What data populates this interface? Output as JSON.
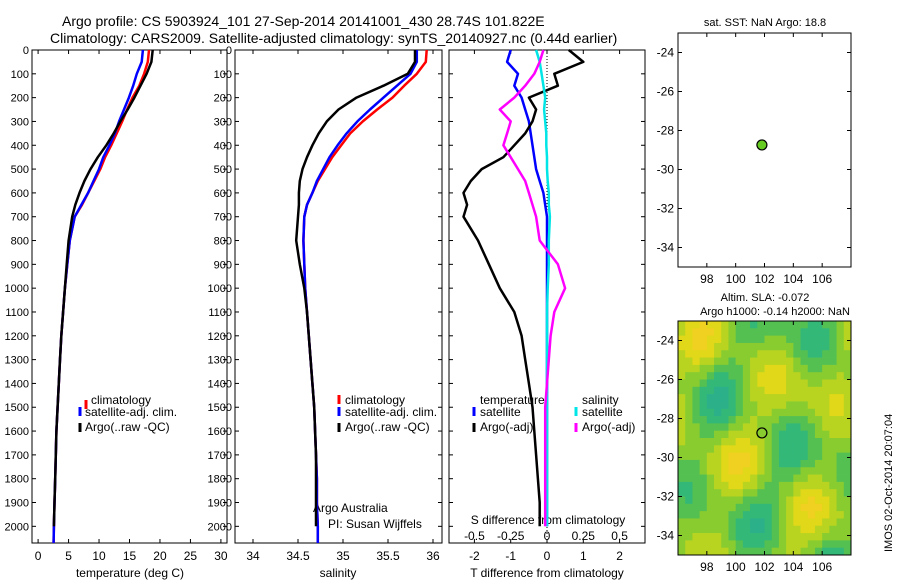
{
  "header": {
    "line1": "Argo profile: CS 5903924_101 27-Sep-2014 20141001_430 28.74S 101.822E",
    "line2": "Climatology: CARS2009. Satellite-adjusted climatology: synTS_20140927.nc (0.44d earlier)"
  },
  "colors": {
    "climatology": "#ff0000",
    "satellite": "#0000ff",
    "argo": "#000000",
    "sal_satellite": "#00e5e5",
    "sal_argo": "#ff00ff"
  },
  "side_texts": {
    "argo_australia": "Argo Australia",
    "pi": "PI: Susan Wijffels",
    "imos": "IMOS 02-Oct-2014 20:07:04"
  },
  "chart_data": [
    {
      "id": "temperature",
      "type": "line",
      "xlabel": "temperature (deg C)",
      "xlim": [
        -1,
        31
      ],
      "xticks": [
        0,
        5,
        10,
        15,
        20,
        25,
        30
      ],
      "ylim": [
        2070,
        0
      ],
      "yticks": [
        0,
        100,
        200,
        300,
        400,
        500,
        600,
        700,
        800,
        900,
        1000,
        1100,
        1200,
        1300,
        1400,
        1500,
        1600,
        1700,
        1800,
        1900,
        2000
      ],
      "legend": [
        "climatology",
        "satellite-adj. clim.",
        "Argo(..raw -QC)"
      ],
      "series": [
        {
          "name": "climatology",
          "color": "#ff0000",
          "x": [
            18.2,
            18.0,
            17.4,
            16.6,
            15.5,
            14.6,
            13.8,
            12.9,
            12.0,
            11.0,
            10.2,
            9.2,
            8.2,
            7.2,
            6.0,
            5.2,
            4.8,
            4.4,
            4.1,
            3.8,
            3.6,
            3.4,
            3.2,
            3.0,
            2.9,
            2.8,
            2.7,
            2.6,
            2.55
          ],
          "y": [
            0,
            50,
            100,
            150,
            200,
            250,
            300,
            350,
            400,
            450,
            500,
            550,
            600,
            650,
            700,
            800,
            900,
            1000,
            1100,
            1200,
            1300,
            1400,
            1500,
            1600,
            1700,
            1800,
            1900,
            2000,
            2070
          ]
        },
        {
          "name": "satellite-adj. clim.",
          "color": "#0000ff",
          "x": [
            17.2,
            17.0,
            16.2,
            15.6,
            14.9,
            14.1,
            13.3,
            12.6,
            11.7,
            10.7,
            10.0,
            9.1,
            8.2,
            7.1,
            6.0,
            5.2,
            4.8,
            4.4,
            4.1,
            3.8,
            3.6,
            3.4,
            3.2,
            3.0,
            2.9,
            2.8,
            2.7,
            2.6,
            2.55
          ],
          "y": [
            0,
            50,
            100,
            150,
            200,
            250,
            300,
            350,
            400,
            450,
            500,
            550,
            600,
            650,
            700,
            800,
            900,
            1000,
            1100,
            1200,
            1300,
            1400,
            1500,
            1600,
            1700,
            1800,
            1900,
            2000,
            2070
          ]
        },
        {
          "name": "Argo(..raw -QC)",
          "color": "#000000",
          "x": [
            18.8,
            18.6,
            17.8,
            16.8,
            15.8,
            14.7,
            13.5,
            12.4,
            11.2,
            9.8,
            8.6,
            7.6,
            6.8,
            6.1,
            5.6,
            5.0,
            4.7,
            4.4,
            4.1,
            3.8,
            3.6,
            3.4,
            3.2,
            3.0,
            2.9,
            2.8,
            2.7,
            2.6
          ],
          "y": [
            0,
            50,
            100,
            150,
            200,
            250,
            300,
            350,
            400,
            450,
            500,
            550,
            600,
            650,
            700,
            800,
            900,
            1000,
            1100,
            1200,
            1300,
            1400,
            1500,
            1600,
            1700,
            1800,
            1900,
            2000
          ]
        }
      ]
    },
    {
      "id": "salinity",
      "type": "line",
      "xlabel": "salinity",
      "xlim": [
        33.8,
        36.1
      ],
      "xticks": [
        34,
        34.5,
        35,
        35.5,
        36
      ],
      "ylim": [
        2070,
        0
      ],
      "legend": [
        "climatology",
        "satellite-adj. clim.",
        "Argo(..raw -QC)"
      ],
      "series": [
        {
          "name": "climatology",
          "color": "#ff0000",
          "x": [
            35.93,
            35.92,
            35.82,
            35.68,
            35.55,
            35.38,
            35.22,
            35.08,
            34.98,
            34.88,
            34.8,
            34.72,
            34.66,
            34.6,
            34.57,
            34.56,
            34.57,
            34.58,
            34.6,
            34.62,
            34.64,
            34.66,
            34.68,
            34.69,
            34.7,
            34.71,
            34.71,
            34.72,
            34.72
          ],
          "y": [
            0,
            50,
            100,
            150,
            200,
            250,
            300,
            350,
            400,
            450,
            500,
            550,
            600,
            650,
            700,
            800,
            900,
            1000,
            1100,
            1200,
            1300,
            1400,
            1500,
            1600,
            1700,
            1800,
            1900,
            2000,
            2070
          ]
        },
        {
          "name": "satellite-adj. clim.",
          "color": "#0000ff",
          "x": [
            35.82,
            35.82,
            35.75,
            35.6,
            35.45,
            35.3,
            35.16,
            35.04,
            34.94,
            34.85,
            34.78,
            34.71,
            34.66,
            34.6,
            34.57,
            34.56,
            34.57,
            34.58,
            34.6,
            34.62,
            34.64,
            34.66,
            34.68,
            34.69,
            34.7,
            34.71,
            34.71,
            34.72,
            34.72
          ],
          "y": [
            0,
            50,
            100,
            150,
            200,
            250,
            300,
            350,
            400,
            450,
            500,
            550,
            600,
            650,
            700,
            800,
            900,
            1000,
            1100,
            1200,
            1300,
            1400,
            1500,
            1600,
            1700,
            1800,
            1900,
            2000,
            2070
          ]
        },
        {
          "name": "Argo(..raw -QC)",
          "color": "#000000",
          "x": [
            35.8,
            35.8,
            35.72,
            35.45,
            35.15,
            34.95,
            34.82,
            34.73,
            34.66,
            34.6,
            34.55,
            34.52,
            34.51,
            34.51,
            34.5,
            34.48,
            34.52,
            34.57,
            34.6,
            34.62,
            34.64,
            34.66,
            34.68,
            34.69,
            34.7,
            34.7,
            34.7,
            34.7
          ],
          "y": [
            0,
            50,
            100,
            150,
            200,
            250,
            300,
            350,
            400,
            450,
            500,
            550,
            600,
            650,
            700,
            800,
            900,
            1000,
            1100,
            1200,
            1300,
            1400,
            1500,
            1600,
            1700,
            1800,
            1900,
            2000
          ]
        }
      ]
    },
    {
      "id": "differences",
      "type": "line",
      "xlabel": "T difference from climatology",
      "xlabel_top": "S difference from climatology",
      "xlim": [
        -2.7,
        2.7
      ],
      "xticks": [
        -2,
        -1,
        0,
        1,
        2
      ],
      "xtick_labels_top": [
        "-0.5",
        "-0.25",
        "0",
        "0.25",
        "0.5"
      ],
      "ylim": [
        2070,
        0
      ],
      "legend_titles": [
        "temperature",
        "salinity"
      ],
      "legend": [
        "satellite",
        "Argo(-adj)",
        "satellite",
        "Argo(-adj)"
      ],
      "series": [
        {
          "name": "satellite",
          "group": "temperature",
          "color": "#0000ff",
          "x": [
            -1.0,
            -1.1,
            -0.8,
            -0.9,
            -0.7,
            -0.6,
            -0.5,
            -0.45,
            -0.4,
            -0.35,
            -0.3,
            -0.2,
            -0.1,
            -0.05,
            0.0,
            0.0,
            0.0,
            0.0,
            0.0,
            0.0,
            0.0,
            0.0,
            0.0,
            0.0,
            0.0,
            0.0,
            0.0,
            0.0
          ],
          "y": [
            0,
            50,
            100,
            150,
            200,
            250,
            300,
            350,
            400,
            450,
            500,
            550,
            600,
            650,
            700,
            800,
            900,
            1000,
            1100,
            1200,
            1300,
            1400,
            1500,
            1600,
            1700,
            1800,
            1900,
            2000
          ]
        },
        {
          "name": "Argo(-adj)",
          "group": "temperature",
          "color": "#000000",
          "x": [
            0.6,
            1.0,
            0.2,
            0.3,
            -0.5,
            -0.3,
            -0.4,
            -0.6,
            -0.9,
            -1.2,
            -1.8,
            -2.1,
            -2.3,
            -2.2,
            -2.3,
            -1.9,
            -1.6,
            -1.3,
            -0.9,
            -0.7,
            -0.6,
            -0.5,
            -0.4,
            -0.35,
            -0.3,
            -0.25,
            -0.2,
            -0.2
          ],
          "y": [
            0,
            50,
            100,
            150,
            200,
            250,
            300,
            350,
            400,
            450,
            500,
            550,
            600,
            650,
            700,
            800,
            900,
            1000,
            1100,
            1200,
            1300,
            1400,
            1500,
            1600,
            1700,
            1800,
            1900,
            2000
          ]
        },
        {
          "name": "satellite",
          "group": "salinity",
          "color": "#00e5e5",
          "x": [
            -0.3,
            -0.2,
            -0.15,
            -0.1,
            -0.05,
            -0.08,
            -0.05,
            -0.02,
            -0.02,
            0.0,
            0.0,
            0.02,
            0.05,
            0.05,
            0.08,
            0.05,
            0.05,
            0.02,
            0.0,
            0.0,
            0.0,
            0.0,
            0.0,
            0.0,
            0.0,
            0.0,
            0.0,
            0.0
          ],
          "y": [
            0,
            50,
            100,
            150,
            200,
            250,
            300,
            350,
            400,
            450,
            500,
            550,
            600,
            650,
            700,
            800,
            900,
            1000,
            1100,
            1200,
            1300,
            1400,
            1500,
            1600,
            1700,
            1800,
            1900,
            2000
          ]
        },
        {
          "name": "Argo(-adj)",
          "group": "salinity",
          "color": "#ff00ff",
          "x": [
            -0.1,
            -0.2,
            -0.35,
            -0.6,
            -0.9,
            -1.3,
            -1.0,
            -1.1,
            -1.2,
            -1.0,
            -0.8,
            -0.6,
            -0.5,
            -0.4,
            -0.3,
            -0.2,
            0.3,
            0.5,
            0.2,
            0.1,
            0.05,
            0.0,
            -0.05,
            -0.05,
            -0.05,
            -0.05,
            -0.05,
            -0.05
          ],
          "y": [
            0,
            50,
            100,
            150,
            200,
            250,
            300,
            350,
            400,
            450,
            500,
            550,
            600,
            650,
            700,
            800,
            900,
            1000,
            1100,
            1200,
            1300,
            1400,
            1500,
            1600,
            1700,
            1800,
            1900,
            2000
          ]
        }
      ]
    },
    {
      "id": "sst-map",
      "type": "scatter",
      "title": "sat. SST: NaN Argo: 18.8",
      "xlim": [
        96,
        108
      ],
      "ylim": [
        -35,
        -23
      ],
      "xticks": [
        98,
        100,
        102,
        104,
        106
      ],
      "yticks": [
        -24,
        -26,
        -28,
        -30,
        -32,
        -34
      ],
      "point": {
        "x": 101.82,
        "y": -28.74,
        "color": "#66cc22"
      }
    },
    {
      "id": "sla-map",
      "type": "heatmap",
      "title_line1": "Altim. SLA: -0.072",
      "title_line2": "Argo h1000: -0.14 h2000: NaN",
      "xlim": [
        96,
        108
      ],
      "ylim": [
        -35,
        -23
      ],
      "xticks": [
        98,
        100,
        102,
        104,
        106
      ],
      "yticks": [
        -24,
        -26,
        -28,
        -30,
        -32,
        -34
      ],
      "point": {
        "x": 101.82,
        "y": -28.74
      }
    }
  ]
}
